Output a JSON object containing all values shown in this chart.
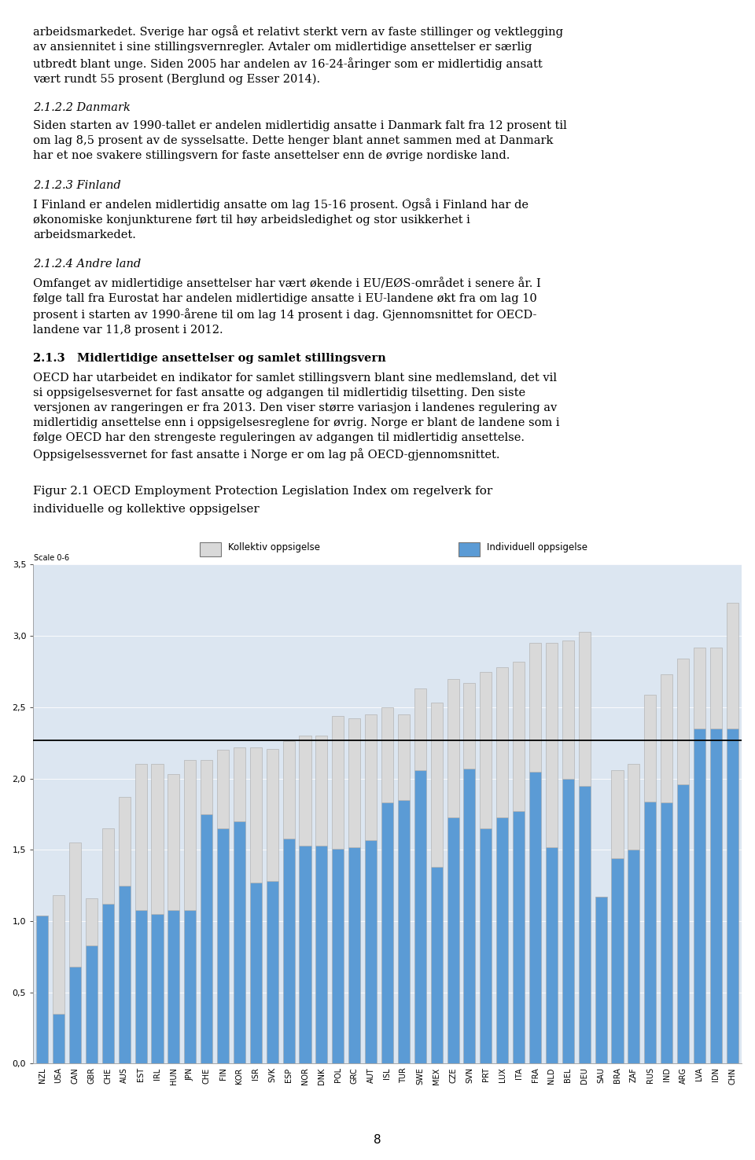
{
  "legend_kollektiv": "Kollektiv oppsigelse",
  "legend_individuell": "Individuell oppsigelse",
  "scale_label": "Scale 0-6",
  "reference_line": 2.27,
  "ylim": [
    0.0,
    3.5
  ],
  "ytick_labels": [
    "0,0",
    "0,5",
    "1,0",
    "1,5",
    "2,0",
    "2,5",
    "3,0",
    "3,5"
  ],
  "page_number": "8",
  "countries": [
    "NZL",
    "USA",
    "CAN",
    "GBR",
    "CHE",
    "AUS",
    "EST",
    "IRL",
    "HUN",
    "JPN",
    "CHE",
    "FIN",
    "KOR",
    "ISR",
    "SVK",
    "ESP",
    "NOR",
    "DNK",
    "POL",
    "GRC",
    "AUT",
    "ISL",
    "TUR",
    "SWE",
    "MEX",
    "CZE",
    "SVN",
    "PRT",
    "LUX",
    "ITA",
    "FRA",
    "NLD",
    "BEL",
    "DEU",
    "SAU",
    "BRA",
    "ZAF",
    "RUS",
    "IND",
    "ARG",
    "LVA",
    "IDN",
    "CHN"
  ],
  "individual_vals": [
    1.04,
    0.35,
    0.68,
    0.83,
    1.12,
    1.25,
    1.08,
    1.05,
    1.08,
    1.08,
    1.75,
    1.65,
    1.7,
    1.27,
    1.28,
    1.58,
    1.53,
    1.53,
    1.51,
    1.52,
    1.57,
    1.83,
    1.85,
    2.06,
    1.38,
    1.73,
    2.07,
    1.65,
    1.73,
    1.77,
    2.05,
    1.52,
    2.0,
    1.95,
    1.17,
    1.44,
    1.5,
    1.84,
    1.83,
    1.96,
    2.35,
    2.35,
    2.35
  ],
  "kollektiv_vals": [
    0.0,
    0.83,
    0.87,
    0.33,
    0.53,
    0.62,
    1.02,
    1.05,
    0.95,
    1.05,
    0.38,
    0.55,
    0.52,
    0.95,
    0.93,
    0.68,
    0.77,
    0.77,
    0.93,
    0.9,
    0.88,
    0.67,
    0.6,
    0.57,
    1.15,
    0.97,
    0.6,
    1.1,
    1.05,
    1.05,
    0.9,
    1.43,
    0.97,
    1.08,
    0.0,
    0.62,
    0.6,
    0.75,
    0.9,
    0.88,
    0.57,
    0.57,
    0.88
  ],
  "bar_color_individual": "#5b9bd5",
  "bar_color_kollektiv": "#d9d9d9",
  "bar_edge_color": "#aaaaaa",
  "background_color": "#dce6f1",
  "legend_bg": "#e8e8e8",
  "reference_line_color": "#000000",
  "font_size_body": 10.5,
  "font_size_title": 11.0,
  "para0": "arbeidsmarkedet. Sverige har også et relativt sterkt vern av faste stillinger og vektlegging\nav ansiennitet i sine stillingsvernregler. Avtaler om midlertidige ansettelser er særlig\nutbredt blant unge. Siden 2005 har andelen av 16-24-åringer som er midlertidig ansatt\nvært rundt 55 prosent (Berglund og Esser 2014).",
  "head1": "2.1.2.2 Danmark",
  "para1": "Siden starten av 1990-tallet er andelen midlertidig ansatte i Danmark falt fra 12 prosent til\nom lag 8,5 prosent av de sysselsatte. Dette henger blant annet sammen med at Danmark\nhar et noe svakere stillingsvern for faste ansettelser enn de øvrige nordiske land.",
  "head2": "2.1.2.3 Finland",
  "para2": "I Finland er andelen midlertidig ansatte om lag 15-16 prosent. Også i Finland har de\nøkonomiske konjunkturene ført til høy arbeidsledighet og stor usikkerhet i\narbeidsmarkedet.",
  "head3": "2.1.2.4 Andre land",
  "para3": "Omfanget av midlertidige ansettelser har vært økende i EU/EØS-området i senere år. I\nfølge tall fra Eurostat har andelen midlertidige ansatte i EU-landene økt fra om lag 10\nprosent i starten av 1990-årene til om lag 14 prosent i dag. Gjennomsnittet for OECD-\nlandene var 11,8 prosent i 2012.",
  "head4": "2.1.3   Midlertidige ansettelser og samlet stillingsvern",
  "para4": "OECD har utarbeidet en indikator for samlet stillingsvern blant sine medlemsland, det vil\nsi oppsigelsesvernet for fast ansatte og adgangen til midlertidig tilsetting. Den siste\nversjonen av rangeringen er fra 2013. Den viser større variasjon i landenes regulering av\nmidlertidig ansettelse enn i oppsigelsesreglene for øvrig. Norge er blant de landene som i\nfølge OECD har den strengeste reguleringen av adgangen til midlertidig ansettelse.\nOppsigelsessvernet for fast ansatte i Norge er om lag på OECD-gjennomsnittet.",
  "fig_title_line1": "Figur 2.1 OECD Employment Protection Legislation Index om regelverk for",
  "fig_title_line2": "individuelle og kollektive oppsigelser"
}
